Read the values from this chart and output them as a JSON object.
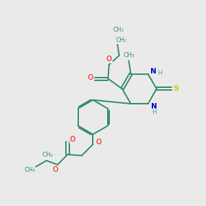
{
  "bg_color": "#eaeaea",
  "bond_color": "#2d8a6e",
  "o_color": "#ff0000",
  "n_color": "#0000cc",
  "s_color": "#cccc00",
  "h_color": "#5599aa",
  "figsize": [
    3.0,
    3.0
  ],
  "dpi": 100,
  "xlim": [
    0,
    10
  ],
  "ylim": [
    0,
    10
  ]
}
